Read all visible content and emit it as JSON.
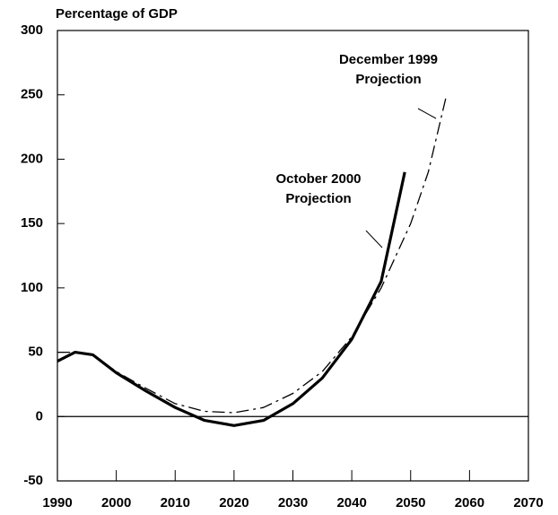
{
  "chart_data": {
    "type": "line",
    "ylabel": "Percentage of GDP",
    "xlim": [
      1990,
      2070
    ],
    "xticks": [
      1990,
      2000,
      2010,
      2020,
      2030,
      2040,
      2050,
      2060,
      2070
    ],
    "ylim": [
      -50,
      300
    ],
    "yticks": [
      -50,
      0,
      50,
      100,
      150,
      200,
      250,
      300
    ],
    "series": [
      {
        "name": "October 2000 Projection",
        "color": "#000000",
        "linestyle": "solid",
        "x": [
          1990,
          1993,
          1996,
          2000,
          2005,
          2010,
          2015,
          2020,
          2025,
          2030,
          2035,
          2040,
          2045,
          2049
        ],
        "values": [
          43,
          50,
          48,
          34,
          20,
          7,
          -3,
          -7,
          -3,
          10,
          30,
          60,
          105,
          190
        ]
      },
      {
        "name": "December 1999 Projection",
        "color": "#000000",
        "linestyle": "dashdot",
        "x": [
          1990,
          1993,
          1996,
          2000,
          2005,
          2010,
          2015,
          2020,
          2025,
          2030,
          2035,
          2040,
          2045,
          2050,
          2053,
          2056
        ],
        "values": [
          50,
          50,
          48,
          35,
          22,
          10,
          4,
          3,
          7,
          18,
          35,
          62,
          100,
          150,
          190,
          248
        ]
      }
    ],
    "annotations": [
      {
        "lines": [
          "December 1999",
          "Projection"
        ]
      },
      {
        "lines": [
          "October 2000",
          "Projection"
        ]
      }
    ]
  }
}
